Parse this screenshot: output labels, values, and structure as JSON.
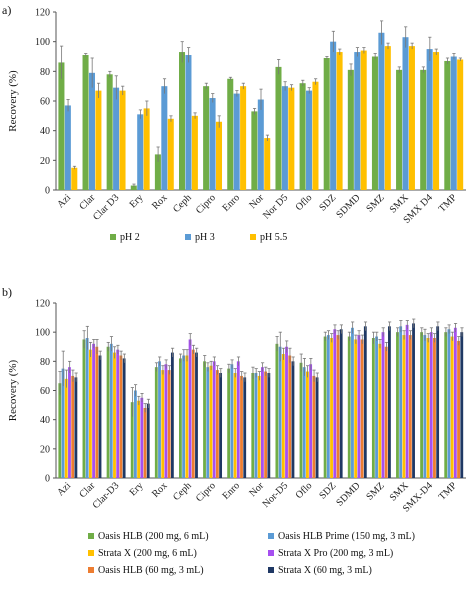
{
  "chart_data": [
    {
      "type": "bar",
      "panel_label": "a)",
      "title": "",
      "xlabel": "",
      "ylabel": "Recovery (%)",
      "ylim": [
        0,
        120
      ],
      "yticks": [
        0,
        20,
        40,
        60,
        80,
        100,
        120
      ],
      "grid": false,
      "legend_position": "bottom",
      "categories": [
        "Azi",
        "Clar",
        "Clar D3",
        "Ery",
        "Rox",
        "Ceph",
        "Cipro",
        "Enro",
        "Nor",
        "Nor D5",
        "Oflo",
        "SDZ",
        "SDMD",
        "SMZ",
        "SMX",
        "SMX D4",
        "TMP"
      ],
      "series": [
        {
          "name": "pH 2",
          "color": "#70ad47",
          "values": [
            86,
            91,
            78,
            3,
            24,
            93,
            70,
            75,
            53,
            83,
            72,
            89,
            81,
            90,
            81,
            81,
            87
          ],
          "errors": [
            11,
            1,
            2,
            1,
            5,
            7,
            2,
            1,
            2,
            5,
            2,
            1,
            4,
            2,
            2,
            2,
            2
          ]
        },
        {
          "name": "pH 3",
          "color": "#5b9bd5",
          "values": [
            57,
            79,
            69,
            51,
            70,
            91,
            62,
            65,
            61,
            70,
            67,
            100,
            93,
            106,
            103,
            95,
            90
          ],
          "errors": [
            4,
            10,
            8,
            3,
            5,
            5,
            3,
            2,
            7,
            3,
            2,
            7,
            3,
            8,
            7,
            8,
            2
          ]
        },
        {
          "name": "pH 5.5",
          "color": "#ffc000",
          "values": [
            15,
            67,
            67,
            55,
            48,
            50,
            46,
            70,
            35,
            69,
            73,
            93,
            94,
            97,
            97,
            93,
            88
          ],
          "errors": [
            1,
            5,
            3,
            5,
            2,
            2,
            4,
            2,
            2,
            2,
            2,
            2,
            2,
            2,
            2,
            2,
            1
          ]
        }
      ]
    },
    {
      "type": "bar",
      "panel_label": "b)",
      "title": "",
      "xlabel": "",
      "ylabel": "Recovery (%)",
      "ylim": [
        0,
        120
      ],
      "yticks": [
        0,
        20,
        40,
        60,
        80,
        100,
        120
      ],
      "grid": false,
      "legend_position": "bottom",
      "categories": [
        "Azi",
        "Clar",
        "Clar-D3",
        "Ery",
        "Rox",
        "Ceph",
        "Cipro",
        "Enro",
        "Nor",
        "Nor-D5",
        "Oflo",
        "SDZ",
        "SDMD",
        "SMZ",
        "SMX",
        "SMX-D4",
        "TMP"
      ],
      "series": [
        {
          "name": "Oasis HLB (200 mg, 6 mL)",
          "color": "#70ad47",
          "values": [
            65,
            95,
            90,
            52,
            76,
            82,
            80,
            75,
            72,
            92,
            79,
            97,
            97,
            96,
            100,
            100,
            100
          ],
          "errors": [
            8,
            6,
            3,
            10,
            3,
            3,
            4,
            3,
            4,
            5,
            6,
            3,
            3,
            4,
            3,
            3,
            3
          ]
        },
        {
          "name": "Oasis HLB Prime (150 mg, 3 mL)",
          "color": "#5b9bd5",
          "values": [
            75,
            96,
            92,
            60,
            80,
            84,
            76,
            78,
            72,
            90,
            76,
            98,
            103,
            97,
            104,
            98,
            102
          ],
          "errors": [
            12,
            8,
            5,
            4,
            3,
            4,
            3,
            3,
            3,
            10,
            6,
            3,
            4,
            3,
            4,
            4,
            3
          ]
        },
        {
          "name": "Strata X (200 mg, 6 mL)",
          "color": "#ffc000",
          "values": [
            68,
            88,
            86,
            53,
            74,
            84,
            77,
            72,
            70,
            85,
            73,
            96,
            95,
            92,
            98,
            96,
            97
          ],
          "errors": [
            6,
            5,
            4,
            3,
            3,
            4,
            3,
            3,
            3,
            4,
            4,
            3,
            3,
            3,
            3,
            3,
            3
          ]
        },
        {
          "name": "Strata X Pro (200 mg, 3 mL)",
          "color": "#a64ff0",
          "values": [
            76,
            92,
            88,
            55,
            78,
            95,
            80,
            80,
            76,
            90,
            78,
            102,
            98,
            100,
            105,
            100,
            103
          ],
          "errors": [
            4,
            3,
            3,
            3,
            3,
            4,
            3,
            3,
            3,
            4,
            4,
            3,
            3,
            3,
            3,
            3,
            3
          ]
        },
        {
          "name": "Oasis HLB (60 mg, 3 mL)",
          "color": "#ed7d31",
          "values": [
            70,
            90,
            84,
            48,
            74,
            88,
            74,
            70,
            73,
            84,
            70,
            98,
            95,
            90,
            98,
            96,
            94
          ],
          "errors": [
            4,
            5,
            3,
            3,
            3,
            3,
            3,
            3,
            3,
            5,
            4,
            3,
            3,
            3,
            3,
            3,
            3
          ]
        },
        {
          "name": "Strata X (60 mg, 3 mL)",
          "color": "#1f3864",
          "values": [
            69,
            84,
            82,
            51,
            86,
            86,
            72,
            69,
            72,
            80,
            69,
            102,
            104,
            104,
            106,
            104,
            100
          ],
          "errors": [
            3,
            3,
            3,
            3,
            3,
            3,
            3,
            3,
            3,
            3,
            3,
            3,
            3,
            3,
            3,
            3,
            3
          ]
        }
      ]
    }
  ]
}
